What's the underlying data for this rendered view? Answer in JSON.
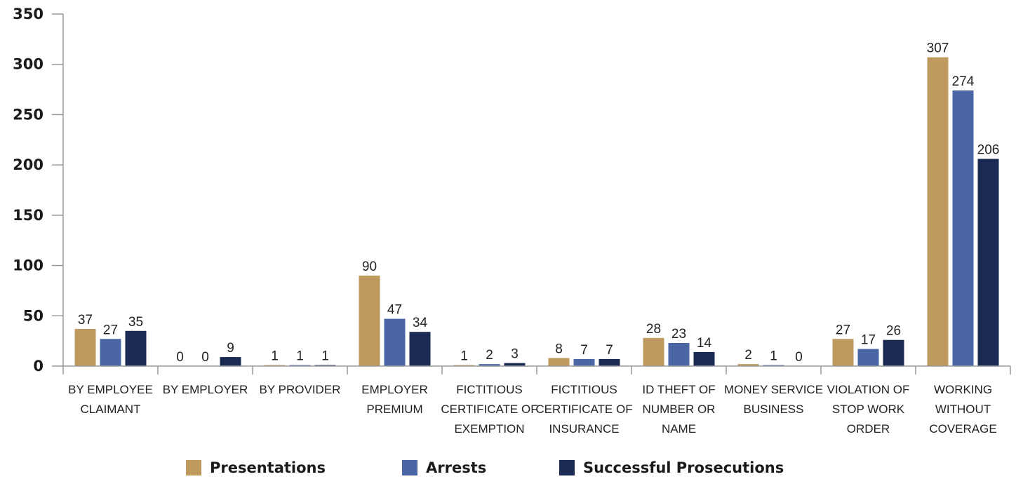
{
  "chart_data": {
    "type": "bar",
    "title": "",
    "xlabel": "",
    "ylabel": "",
    "ylim": [
      0,
      350
    ],
    "yticks": [
      "0",
      "50",
      "100",
      "150",
      "200",
      "250",
      "300",
      "350"
    ],
    "grid": false,
    "legend_position": "bottom",
    "categories": [
      [
        "BY EMPLOYEE",
        "CLAIMANT"
      ],
      [
        "BY EMPLOYER"
      ],
      [
        "BY PROVIDER"
      ],
      [
        "EMPLOYER",
        "PREMIUM"
      ],
      [
        "FICTITIOUS",
        "CERTIFICATE OF",
        "EXEMPTION"
      ],
      [
        "FICTITIOUS",
        "CERTIFICATE OF",
        "INSURANCE"
      ],
      [
        "ID THEFT OF",
        "NUMBER OR",
        "NAME"
      ],
      [
        "MONEY SERVICE",
        "BUSINESS"
      ],
      [
        "VIOLATION OF",
        "STOP WORK",
        "ORDER"
      ],
      [
        "WORKING",
        "WITHOUT",
        "COVERAGE"
      ]
    ],
    "series": [
      {
        "name": "Presentations",
        "color": "#BF9A5F",
        "values": [
          37,
          0,
          1,
          90,
          1,
          8,
          28,
          2,
          27,
          307
        ]
      },
      {
        "name": "Arrests",
        "color": "#4A66A5",
        "values": [
          27,
          0,
          1,
          47,
          2,
          7,
          23,
          1,
          17,
          274
        ]
      },
      {
        "name": "Successful Prosecutions",
        "color": "#1A2A52",
        "values": [
          35,
          9,
          1,
          34,
          3,
          7,
          14,
          0,
          26,
          206
        ]
      }
    ],
    "axis_color": "#999999"
  }
}
